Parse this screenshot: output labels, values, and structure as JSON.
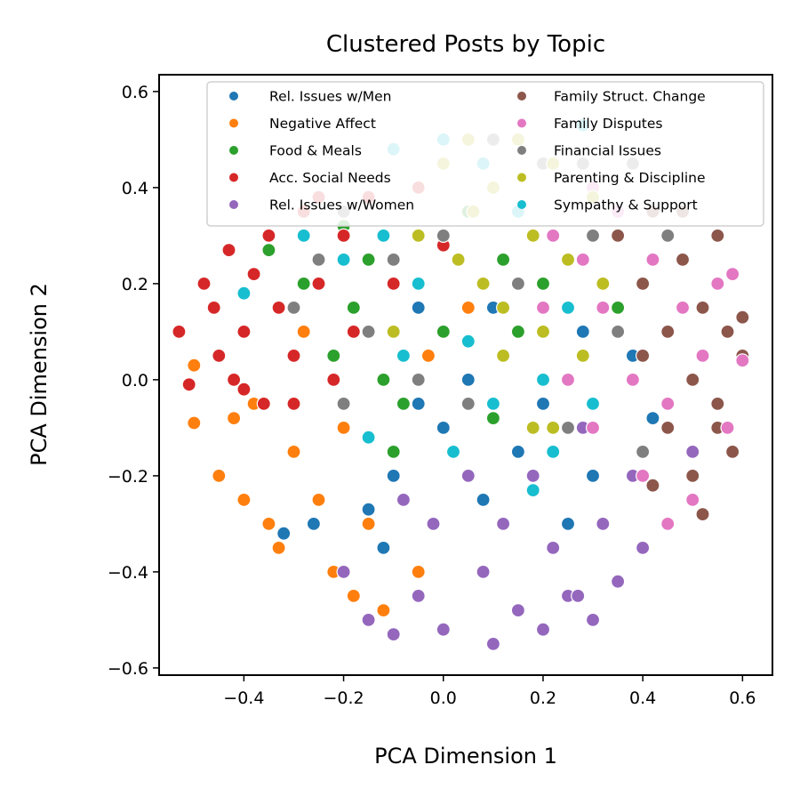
{
  "chart_data": {
    "type": "scatter",
    "title": "Clustered Posts by Topic",
    "xlabel": "PCA Dimension 1",
    "ylabel": "PCA Dimension 2",
    "xlim": [
      -0.57,
      0.66
    ],
    "ylim": [
      -0.615,
      0.635
    ],
    "xticks": [
      -0.4,
      -0.2,
      0.0,
      0.2,
      0.4,
      0.6
    ],
    "xtick_labels": [
      "−0.4",
      "−0.2",
      "0.0",
      "0.2",
      "0.4",
      "0.6"
    ],
    "yticks": [
      -0.6,
      -0.4,
      -0.2,
      0.0,
      0.2,
      0.4,
      0.6
    ],
    "ytick_labels": [
      "−0.6",
      "−0.4",
      "−0.2",
      "0.0",
      "0.2",
      "0.4",
      "0.6"
    ],
    "grid": false,
    "legend_position": "top-right",
    "legend_columns": 2,
    "series": [
      {
        "name": "Rel. Issues w/Men",
        "color": "#1f77b4",
        "points": [
          [
            -0.32,
            -0.32
          ],
          [
            -0.26,
            -0.3
          ],
          [
            -0.18,
            -0.45
          ],
          [
            -0.15,
            -0.27
          ],
          [
            -0.1,
            -0.2
          ],
          [
            -0.05,
            -0.05
          ],
          [
            0.0,
            -0.1
          ],
          [
            0.05,
            0.0
          ],
          [
            0.12,
            0.05
          ],
          [
            0.15,
            -0.15
          ],
          [
            0.2,
            -0.05
          ],
          [
            0.28,
            0.1
          ],
          [
            0.38,
            0.05
          ],
          [
            0.42,
            -0.08
          ],
          [
            0.25,
            -0.3
          ],
          [
            -0.05,
            0.15
          ],
          [
            0.08,
            -0.25
          ],
          [
            0.3,
            -0.2
          ],
          [
            -0.12,
            -0.35
          ],
          [
            0.1,
            0.15
          ]
        ]
      },
      {
        "name": "Negative Affect",
        "color": "#ff7f0e",
        "points": [
          [
            -0.5,
            0.03
          ],
          [
            -0.5,
            -0.09
          ],
          [
            -0.45,
            -0.2
          ],
          [
            -0.42,
            -0.08
          ],
          [
            -0.4,
            -0.25
          ],
          [
            -0.38,
            -0.05
          ],
          [
            -0.35,
            -0.3
          ],
          [
            -0.33,
            -0.35
          ],
          [
            -0.3,
            -0.15
          ],
          [
            -0.28,
            0.1
          ],
          [
            -0.25,
            -0.25
          ],
          [
            -0.22,
            -0.4
          ],
          [
            -0.2,
            -0.1
          ],
          [
            -0.18,
            -0.45
          ],
          [
            -0.15,
            -0.3
          ],
          [
            -0.12,
            -0.48
          ],
          [
            -0.1,
            -0.15
          ],
          [
            -0.05,
            -0.4
          ],
          [
            -0.03,
            0.05
          ],
          [
            0.05,
            0.15
          ]
        ]
      },
      {
        "name": "Food & Meals",
        "color": "#2ca02c",
        "points": [
          [
            -0.35,
            0.27
          ],
          [
            -0.28,
            0.2
          ],
          [
            -0.22,
            0.05
          ],
          [
            -0.18,
            0.15
          ],
          [
            -0.15,
            0.25
          ],
          [
            -0.12,
            0.0
          ],
          [
            -0.08,
            -0.05
          ],
          [
            -0.05,
            0.3
          ],
          [
            0.0,
            0.1
          ],
          [
            0.05,
            0.35
          ],
          [
            0.1,
            -0.08
          ],
          [
            0.15,
            0.1
          ],
          [
            0.2,
            0.2
          ],
          [
            0.25,
            0.0
          ],
          [
            0.3,
            -0.05
          ],
          [
            0.35,
            0.15
          ],
          [
            -0.1,
            -0.15
          ],
          [
            0.12,
            0.25
          ],
          [
            0.18,
            -0.1
          ],
          [
            -0.2,
            0.32
          ]
        ]
      },
      {
        "name": "Acc. Social Needs",
        "color": "#d62728",
        "points": [
          [
            -0.53,
            0.1
          ],
          [
            -0.51,
            -0.01
          ],
          [
            -0.48,
            0.2
          ],
          [
            -0.46,
            0.15
          ],
          [
            -0.45,
            0.05
          ],
          [
            -0.43,
            0.27
          ],
          [
            -0.42,
            0.0
          ],
          [
            -0.4,
            0.1
          ],
          [
            -0.38,
            0.22
          ],
          [
            -0.36,
            -0.05
          ],
          [
            -0.35,
            0.3
          ],
          [
            -0.33,
            0.15
          ],
          [
            -0.3,
            0.05
          ],
          [
            -0.28,
            0.35
          ],
          [
            -0.25,
            0.2
          ],
          [
            -0.22,
            0.0
          ],
          [
            -0.2,
            0.3
          ],
          [
            -0.18,
            0.1
          ],
          [
            -0.15,
            0.38
          ],
          [
            -0.1,
            0.2
          ],
          [
            -0.05,
            0.4
          ],
          [
            0.0,
            0.28
          ],
          [
            -0.3,
            -0.05
          ],
          [
            -0.25,
            0.38
          ],
          [
            -0.4,
            -0.02
          ]
        ]
      },
      {
        "name": "Rel. Issues w/Women",
        "color": "#9467bd",
        "points": [
          [
            -0.2,
            -0.4
          ],
          [
            -0.15,
            -0.5
          ],
          [
            -0.1,
            -0.53
          ],
          [
            -0.05,
            -0.45
          ],
          [
            -0.02,
            -0.3
          ],
          [
            0.0,
            -0.52
          ],
          [
            0.05,
            -0.2
          ],
          [
            0.08,
            -0.4
          ],
          [
            0.1,
            -0.55
          ],
          [
            0.12,
            -0.3
          ],
          [
            0.15,
            -0.48
          ],
          [
            0.18,
            -0.2
          ],
          [
            0.2,
            -0.52
          ],
          [
            0.22,
            -0.35
          ],
          [
            0.25,
            -0.45
          ],
          [
            0.28,
            -0.1
          ],
          [
            0.3,
            -0.5
          ],
          [
            0.32,
            -0.3
          ],
          [
            0.35,
            -0.42
          ],
          [
            0.38,
            -0.2
          ],
          [
            0.4,
            -0.35
          ],
          [
            0.45,
            -0.3
          ],
          [
            0.5,
            -0.15
          ],
          [
            0.27,
            -0.45
          ],
          [
            -0.08,
            -0.25
          ]
        ]
      },
      {
        "name": "Family Struct. Change",
        "color": "#8c564b",
        "points": [
          [
            0.35,
            0.3
          ],
          [
            0.4,
            0.2
          ],
          [
            0.42,
            0.35
          ],
          [
            0.45,
            0.1
          ],
          [
            0.48,
            0.25
          ],
          [
            0.5,
            0.0
          ],
          [
            0.52,
            0.15
          ],
          [
            0.55,
            -0.05
          ],
          [
            0.55,
            0.3
          ],
          [
            0.57,
            0.1
          ],
          [
            0.58,
            -0.15
          ],
          [
            0.6,
            0.05
          ],
          [
            0.6,
            0.13
          ],
          [
            0.5,
            -0.2
          ],
          [
            0.45,
            -0.1
          ],
          [
            0.42,
            -0.22
          ],
          [
            0.52,
            -0.28
          ],
          [
            0.48,
            0.35
          ],
          [
            0.4,
            0.05
          ],
          [
            0.55,
            -0.1
          ]
        ]
      },
      {
        "name": "Family Disputes",
        "color": "#e377c2",
        "points": [
          [
            0.2,
            0.15
          ],
          [
            0.22,
            0.3
          ],
          [
            0.25,
            0.0
          ],
          [
            0.28,
            0.25
          ],
          [
            0.3,
            -0.1
          ],
          [
            0.32,
            0.15
          ],
          [
            0.35,
            0.35
          ],
          [
            0.38,
            0.0
          ],
          [
            0.4,
            -0.2
          ],
          [
            0.42,
            0.25
          ],
          [
            0.45,
            -0.05
          ],
          [
            0.48,
            0.15
          ],
          [
            0.5,
            -0.25
          ],
          [
            0.52,
            0.05
          ],
          [
            0.55,
            0.2
          ],
          [
            0.57,
            -0.1
          ],
          [
            0.6,
            0.04
          ],
          [
            0.58,
            0.22
          ],
          [
            0.3,
            0.4
          ],
          [
            0.45,
            -0.3
          ]
        ]
      },
      {
        "name": "Financial Issues",
        "color": "#7f7f7f",
        "points": [
          [
            -0.3,
            0.15
          ],
          [
            -0.25,
            0.25
          ],
          [
            -0.2,
            0.35
          ],
          [
            -0.15,
            0.1
          ],
          [
            -0.1,
            0.25
          ],
          [
            -0.05,
            0.0
          ],
          [
            0.0,
            0.3
          ],
          [
            0.05,
            -0.05
          ],
          [
            0.1,
            0.4
          ],
          [
            0.15,
            0.2
          ],
          [
            0.2,
            0.45
          ],
          [
            0.25,
            -0.1
          ],
          [
            0.3,
            0.3
          ],
          [
            0.35,
            0.1
          ],
          [
            0.4,
            -0.15
          ],
          [
            0.45,
            0.3
          ],
          [
            0.38,
            0.45
          ],
          [
            -0.2,
            -0.05
          ],
          [
            0.28,
            0.45
          ],
          [
            0.1,
            0.5
          ]
        ]
      },
      {
        "name": "Parenting & Discipline",
        "color": "#bcbd22",
        "points": [
          [
            -0.1,
            0.1
          ],
          [
            -0.05,
            0.3
          ],
          [
            0.0,
            0.45
          ],
          [
            0.03,
            0.25
          ],
          [
            0.06,
            0.35
          ],
          [
            0.08,
            0.2
          ],
          [
            0.1,
            0.4
          ],
          [
            0.12,
            0.15
          ],
          [
            0.15,
            0.5
          ],
          [
            0.18,
            0.3
          ],
          [
            0.2,
            0.1
          ],
          [
            0.22,
            0.45
          ],
          [
            0.25,
            0.25
          ],
          [
            0.28,
            0.05
          ],
          [
            0.3,
            0.38
          ],
          [
            0.18,
            -0.1
          ],
          [
            0.05,
            0.5
          ],
          [
            0.22,
            -0.1
          ],
          [
            0.12,
            0.05
          ],
          [
            0.32,
            0.2
          ]
        ]
      },
      {
        "name": "Sympathy & Support",
        "color": "#17becf",
        "points": [
          [
            -0.4,
            0.18
          ],
          [
            -0.28,
            0.3
          ],
          [
            -0.2,
            0.25
          ],
          [
            -0.12,
            0.3
          ],
          [
            -0.1,
            0.48
          ],
          [
            -0.05,
            0.2
          ],
          [
            0.0,
            0.5
          ],
          [
            0.05,
            0.08
          ],
          [
            0.08,
            0.45
          ],
          [
            0.1,
            -0.05
          ],
          [
            0.15,
            0.35
          ],
          [
            0.2,
            0.0
          ],
          [
            0.22,
            -0.15
          ],
          [
            0.25,
            0.15
          ],
          [
            0.28,
            0.53
          ],
          [
            0.3,
            -0.05
          ],
          [
            -0.15,
            -0.12
          ],
          [
            0.18,
            -0.23
          ],
          [
            0.02,
            -0.15
          ],
          [
            -0.08,
            0.05
          ]
        ]
      }
    ]
  }
}
